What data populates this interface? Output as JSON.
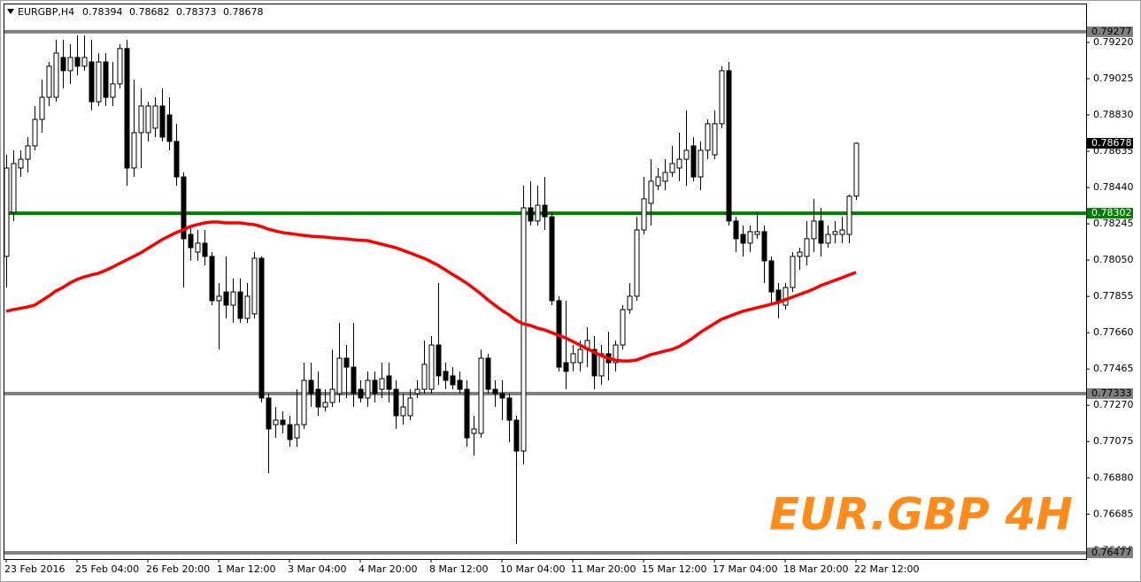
{
  "chart_data": {
    "type": "candlestick",
    "symbol": "EURGBP,H4",
    "categories": [
      "23 Feb 2016",
      null,
      null,
      null,
      null,
      null,
      null,
      null,
      null,
      null,
      "25 Feb 04:00",
      null,
      null,
      null,
      null,
      null,
      null,
      null,
      null,
      null,
      "26 Feb 20:00",
      null,
      null,
      null,
      null,
      null,
      null,
      null,
      null,
      null,
      "1 Mar 12:00",
      null,
      null,
      null,
      null,
      null,
      null,
      null,
      null,
      null,
      "3 Mar 04:00",
      null,
      null,
      null,
      null,
      null,
      null,
      null,
      null,
      null,
      "4 Mar 20:00",
      null,
      null,
      null,
      null,
      null,
      null,
      null,
      null,
      null,
      "8 Mar 12:00",
      null,
      null,
      null,
      null,
      null,
      null,
      null,
      null,
      null,
      "10 Mar 04:00",
      null,
      null,
      null,
      null,
      null,
      null,
      null,
      null,
      null,
      "11 Mar 20:00",
      null,
      null,
      null,
      null,
      null,
      null,
      null,
      null,
      null,
      "15 Mar 12:00",
      null,
      null,
      null,
      null,
      null,
      null,
      null,
      null,
      null,
      "17 Mar 04:00",
      null,
      null,
      null,
      null,
      null,
      null,
      null,
      null,
      null,
      "18 Mar 20:00",
      null,
      null,
      null,
      null,
      null,
      null,
      null,
      null,
      null,
      "22 Mar 12:00"
    ],
    "candles": [
      [
        0.7807,
        0.78616,
        0.77903,
        0.78545
      ],
      [
        0.78307,
        0.7864,
        0.7826,
        0.78569
      ],
      [
        0.78545,
        0.7864,
        0.78497,
        0.78592
      ],
      [
        0.78592,
        0.78711,
        0.78521,
        0.78664
      ],
      [
        0.78664,
        0.78878,
        0.7864,
        0.78806
      ],
      [
        0.78806,
        0.7902,
        0.78735,
        0.78925
      ],
      [
        0.78925,
        0.79115,
        0.78878,
        0.79092
      ],
      [
        0.78925,
        0.79234,
        0.78901,
        0.79163
      ],
      [
        0.79139,
        0.79234,
        0.78973,
        0.79068
      ],
      [
        0.79068,
        0.7921,
        0.78997,
        0.79139
      ],
      [
        0.79139,
        0.79258,
        0.79044,
        0.79092
      ],
      [
        0.79092,
        0.79258,
        0.79068,
        0.79139
      ],
      [
        0.79115,
        0.79234,
        0.78854,
        0.78901
      ],
      [
        0.78901,
        0.79163,
        0.78878,
        0.79115
      ],
      [
        0.79115,
        0.79163,
        0.78878,
        0.78925
      ],
      [
        0.78925,
        0.79115,
        0.78878,
        0.78997
      ],
      [
        0.78997,
        0.7921,
        0.78973,
        0.79187
      ],
      [
        0.79187,
        0.79234,
        0.7845,
        0.78545
      ],
      [
        0.78545,
        0.7902,
        0.78497,
        0.78735
      ],
      [
        0.78735,
        0.78973,
        0.78545,
        0.78878
      ],
      [
        0.78735,
        0.78901,
        0.78688,
        0.78878
      ],
      [
        0.78759,
        0.78925,
        0.78711,
        0.78878
      ],
      [
        0.78878,
        0.78973,
        0.78688,
        0.78711
      ],
      [
        0.7883,
        0.78925,
        0.7864,
        0.78688
      ],
      [
        0.78688,
        0.78783,
        0.7845,
        0.78497
      ],
      [
        0.78497,
        0.78521,
        0.77903,
        0.78165
      ],
      [
        0.78188,
        0.78236,
        0.78046,
        0.78117
      ],
      [
        0.78093,
        0.78212,
        0.78046,
        0.78141
      ],
      [
        0.78141,
        0.78212,
        0.78022,
        0.7807
      ],
      [
        0.7807,
        0.78093,
        0.77808,
        0.77832
      ],
      [
        0.77832,
        0.77927,
        0.7757,
        0.77856
      ],
      [
        0.77879,
        0.7807,
        0.77737,
        0.77808
      ],
      [
        0.77808,
        0.77951,
        0.77713,
        0.77879
      ],
      [
        0.77879,
        0.77951,
        0.77713,
        0.77737
      ],
      [
        0.77737,
        0.77927,
        0.77713,
        0.77856
      ],
      [
        0.77761,
        0.78093,
        0.77737,
        0.7806
      ],
      [
        0.7806,
        0.7807,
        0.77285,
        0.77309
      ],
      [
        0.77309,
        0.77333,
        0.76905,
        0.77143
      ],
      [
        0.77166,
        0.77261,
        0.77095,
        0.7719
      ],
      [
        0.7719,
        0.77238,
        0.77119,
        0.77166
      ],
      [
        0.77166,
        0.77214,
        0.77047,
        0.77086
      ],
      [
        0.77095,
        0.77356,
        0.77047,
        0.77166
      ],
      [
        0.77166,
        0.77499,
        0.77143,
        0.77404
      ],
      [
        0.77404,
        0.77499,
        0.77261,
        0.77333
      ],
      [
        0.77356,
        0.77452,
        0.77214,
        0.77261
      ],
      [
        0.77261,
        0.77356,
        0.77238,
        0.77285
      ],
      [
        0.77285,
        0.7757,
        0.77261,
        0.77356
      ],
      [
        0.77333,
        0.77713,
        0.77285,
        0.77523
      ],
      [
        0.77523,
        0.77594,
        0.77309,
        0.77475
      ],
      [
        0.77475,
        0.77713,
        0.77261,
        0.77333
      ],
      [
        0.77356,
        0.77404,
        0.77285,
        0.77309
      ],
      [
        0.77309,
        0.77452,
        0.77261,
        0.77404
      ],
      [
        0.77404,
        0.77452,
        0.77285,
        0.77333
      ],
      [
        0.77356,
        0.77499,
        0.77309,
        0.77413
      ],
      [
        0.77428,
        0.77499,
        0.77285,
        0.77356
      ],
      [
        0.77356,
        0.77404,
        0.77143,
        0.77214
      ],
      [
        0.77214,
        0.77333,
        0.77166,
        0.77261
      ],
      [
        0.77214,
        0.77356,
        0.7719,
        0.77309
      ],
      [
        0.77333,
        0.77404,
        0.77309,
        0.77356
      ],
      [
        0.77356,
        0.77618,
        0.77333,
        0.7749
      ],
      [
        0.77356,
        0.77642,
        0.77333,
        0.77594
      ],
      [
        0.77594,
        0.77927,
        0.7738,
        0.77428
      ],
      [
        0.77452,
        0.77499,
        0.77356,
        0.77404
      ],
      [
        0.77428,
        0.77475,
        0.77356,
        0.7738
      ],
      [
        0.77404,
        0.77452,
        0.77333,
        0.77356
      ],
      [
        0.77356,
        0.77404,
        0.77047,
        0.77095
      ],
      [
        0.77119,
        0.77214,
        0.77,
        0.77143
      ],
      [
        0.77119,
        0.7757,
        0.77095,
        0.77523
      ],
      [
        0.77523,
        0.77547,
        0.77333,
        0.77356
      ],
      [
        0.77356,
        0.77404,
        0.77261,
        0.77333
      ],
      [
        0.77333,
        0.77404,
        0.7719,
        0.77309
      ],
      [
        0.77309,
        0.77333,
        0.77071,
        0.7719
      ],
      [
        0.7719,
        0.77214,
        0.76525,
        0.77024
      ],
      [
        0.77024,
        0.7845,
        0.76952,
        0.78331
      ],
      [
        0.78331,
        0.78474,
        0.78236,
        0.7826
      ],
      [
        0.7826,
        0.7845,
        0.78236,
        0.78345
      ],
      [
        0.78345,
        0.78497,
        0.78212,
        0.78283
      ],
      [
        0.78283,
        0.78307,
        0.77808,
        0.77832
      ],
      [
        0.77832,
        0.77856,
        0.77452,
        0.77475
      ],
      [
        0.77499,
        0.77832,
        0.77356,
        0.77452
      ],
      [
        0.77499,
        0.77594,
        0.77452,
        0.77547
      ],
      [
        0.77499,
        0.77618,
        0.77452,
        0.7757
      ],
      [
        0.7757,
        0.77689,
        0.77475,
        0.77618
      ],
      [
        0.7757,
        0.77642,
        0.77356,
        0.77428
      ],
      [
        0.77428,
        0.77594,
        0.7738,
        0.77547
      ],
      [
        0.77547,
        0.77665,
        0.77404,
        0.77499
      ],
      [
        0.77499,
        0.77618,
        0.77452,
        0.77594
      ],
      [
        0.77594,
        0.77808,
        0.7757,
        0.77784
      ],
      [
        0.77784,
        0.77927,
        0.77761,
        0.77856
      ],
      [
        0.77856,
        0.78283,
        0.77832,
        0.78212
      ],
      [
        0.78212,
        0.78497,
        0.78188,
        0.78379
      ],
      [
        0.78355,
        0.78592,
        0.78236,
        0.78474
      ],
      [
        0.7845,
        0.78545,
        0.78426,
        0.78497
      ],
      [
        0.78474,
        0.78592,
        0.78426,
        0.78521
      ],
      [
        0.78521,
        0.78664,
        0.78497,
        0.78569
      ],
      [
        0.78545,
        0.78735,
        0.78474,
        0.78592
      ],
      [
        0.78592,
        0.78854,
        0.7845,
        0.7864
      ],
      [
        0.78664,
        0.78711,
        0.78474,
        0.78497
      ],
      [
        0.78497,
        0.78688,
        0.78426,
        0.7864
      ],
      [
        0.7864,
        0.78806,
        0.78592,
        0.78783
      ],
      [
        0.78616,
        0.78854,
        0.78592,
        0.78783
      ],
      [
        0.78783,
        0.79092,
        0.78759,
        0.79068
      ],
      [
        0.79068,
        0.79115,
        0.78236,
        0.7826
      ],
      [
        0.7826,
        0.78283,
        0.78093,
        0.78165
      ],
      [
        0.78188,
        0.78236,
        0.7807,
        0.78141
      ],
      [
        0.78141,
        0.78236,
        0.78093,
        0.78203
      ],
      [
        0.78188,
        0.78307,
        0.78165,
        0.78203
      ],
      [
        0.78203,
        0.78236,
        0.77927,
        0.78046
      ],
      [
        0.78046,
        0.7807,
        0.77808,
        0.77879
      ],
      [
        0.77889,
        0.77927,
        0.77737,
        0.77832
      ],
      [
        0.77808,
        0.77927,
        0.77784,
        0.77903
      ],
      [
        0.77903,
        0.78093,
        0.77879,
        0.7807
      ],
      [
        0.7807,
        0.78117,
        0.77998,
        0.78093
      ],
      [
        0.7807,
        0.7826,
        0.78022,
        0.78165
      ],
      [
        0.78165,
        0.78379,
        0.78093,
        0.7826
      ],
      [
        0.7826,
        0.78331,
        0.7807,
        0.78141
      ],
      [
        0.78141,
        0.78236,
        0.78117,
        0.78188
      ],
      [
        0.78188,
        0.7826,
        0.78141,
        0.78203
      ],
      [
        0.78188,
        0.78283,
        0.78141,
        0.78212
      ],
      [
        0.78188,
        0.78402,
        0.78141,
        0.78393
      ],
      [
        0.78394,
        0.78682,
        0.78373,
        0.78678
      ]
    ],
    "ma": {
      "color": "#ff0000",
      "values": [
        0.77775,
        0.77784,
        0.77791,
        0.77798,
        0.77808,
        0.77832,
        0.77856,
        0.77884,
        0.77903,
        0.77927,
        0.77946,
        0.7796,
        0.7797,
        0.77979,
        0.77994,
        0.78012,
        0.78032,
        0.78051,
        0.7807,
        0.78089,
        0.78113,
        0.78136,
        0.7816,
        0.78179,
        0.78198,
        0.78212,
        0.78231,
        0.78241,
        0.7825,
        0.78255,
        0.78255,
        0.7825,
        0.7825,
        0.7825,
        0.78245,
        0.78241,
        0.78231,
        0.78217,
        0.78207,
        0.78198,
        0.78193,
        0.78188,
        0.78183,
        0.78179,
        0.78176,
        0.78174,
        0.78169,
        0.78167,
        0.78164,
        0.7816,
        0.78157,
        0.78155,
        0.78145,
        0.78136,
        0.78126,
        0.78117,
        0.78103,
        0.78089,
        0.78074,
        0.7806,
        0.78041,
        0.78022,
        0.77998,
        0.77974,
        0.77951,
        0.77927,
        0.77899,
        0.7787,
        0.77837,
        0.77808,
        0.7778,
        0.77756,
        0.77727,
        0.77708,
        0.77699,
        0.77685,
        0.77675,
        0.77661,
        0.77646,
        0.77632,
        0.77613,
        0.77594,
        0.77575,
        0.77556,
        0.77537,
        0.77523,
        0.77513,
        0.77508,
        0.77508,
        0.77513,
        0.77527,
        0.77542,
        0.77551,
        0.77561,
        0.7757,
        0.77585,
        0.77608,
        0.77632,
        0.77661,
        0.77685,
        0.77708,
        0.77732,
        0.77746,
        0.77761,
        0.77775,
        0.77784,
        0.77794,
        0.77803,
        0.77813,
        0.77822,
        0.77837,
        0.77851,
        0.77865,
        0.77879,
        0.77894,
        0.77913,
        0.77927,
        0.77941,
        0.77955,
        0.7797,
        0.77984
      ]
    },
    "levels": [
      {
        "value": 0.79277,
        "color": "#808080"
      },
      {
        "value": 0.78302,
        "color": "#008000"
      },
      {
        "value": 0.77333,
        "color": "#808080"
      },
      {
        "value": 0.76477,
        "color": "#808080"
      }
    ],
    "bull_color": "#ffffff",
    "bear_color": "#000000",
    "ylim": [
      0.76444,
      0.79424
    ],
    "yticks": [
      {
        "value": 0.7922,
        "label": "0.79220"
      },
      {
        "value": 0.79025,
        "label": "0.79025"
      },
      {
        "value": 0.7883,
        "label": "0.78830"
      },
      {
        "value": 0.78635,
        "label": "0.78635"
      },
      {
        "value": 0.7844,
        "label": "0.78440"
      },
      {
        "value": 0.78245,
        "label": "0.78245"
      },
      {
        "value": 0.7805,
        "label": "0.78050"
      },
      {
        "value": 0.77855,
        "label": "0.77855"
      },
      {
        "value": 0.7766,
        "label": "0.77660"
      },
      {
        "value": 0.77465,
        "label": "0.77465"
      },
      {
        "value": 0.7727,
        "label": "0.77270"
      },
      {
        "value": 0.77075,
        "label": "0.77075"
      },
      {
        "value": 0.7688,
        "label": "0.76880"
      },
      {
        "value": 0.76685,
        "label": "0.76685"
      },
      {
        "value": 0.7649,
        "label": "0.76490"
      }
    ],
    "watermark": "EUR.GBP 4H",
    "watermark_color": "#ff8c1a"
  }
}
